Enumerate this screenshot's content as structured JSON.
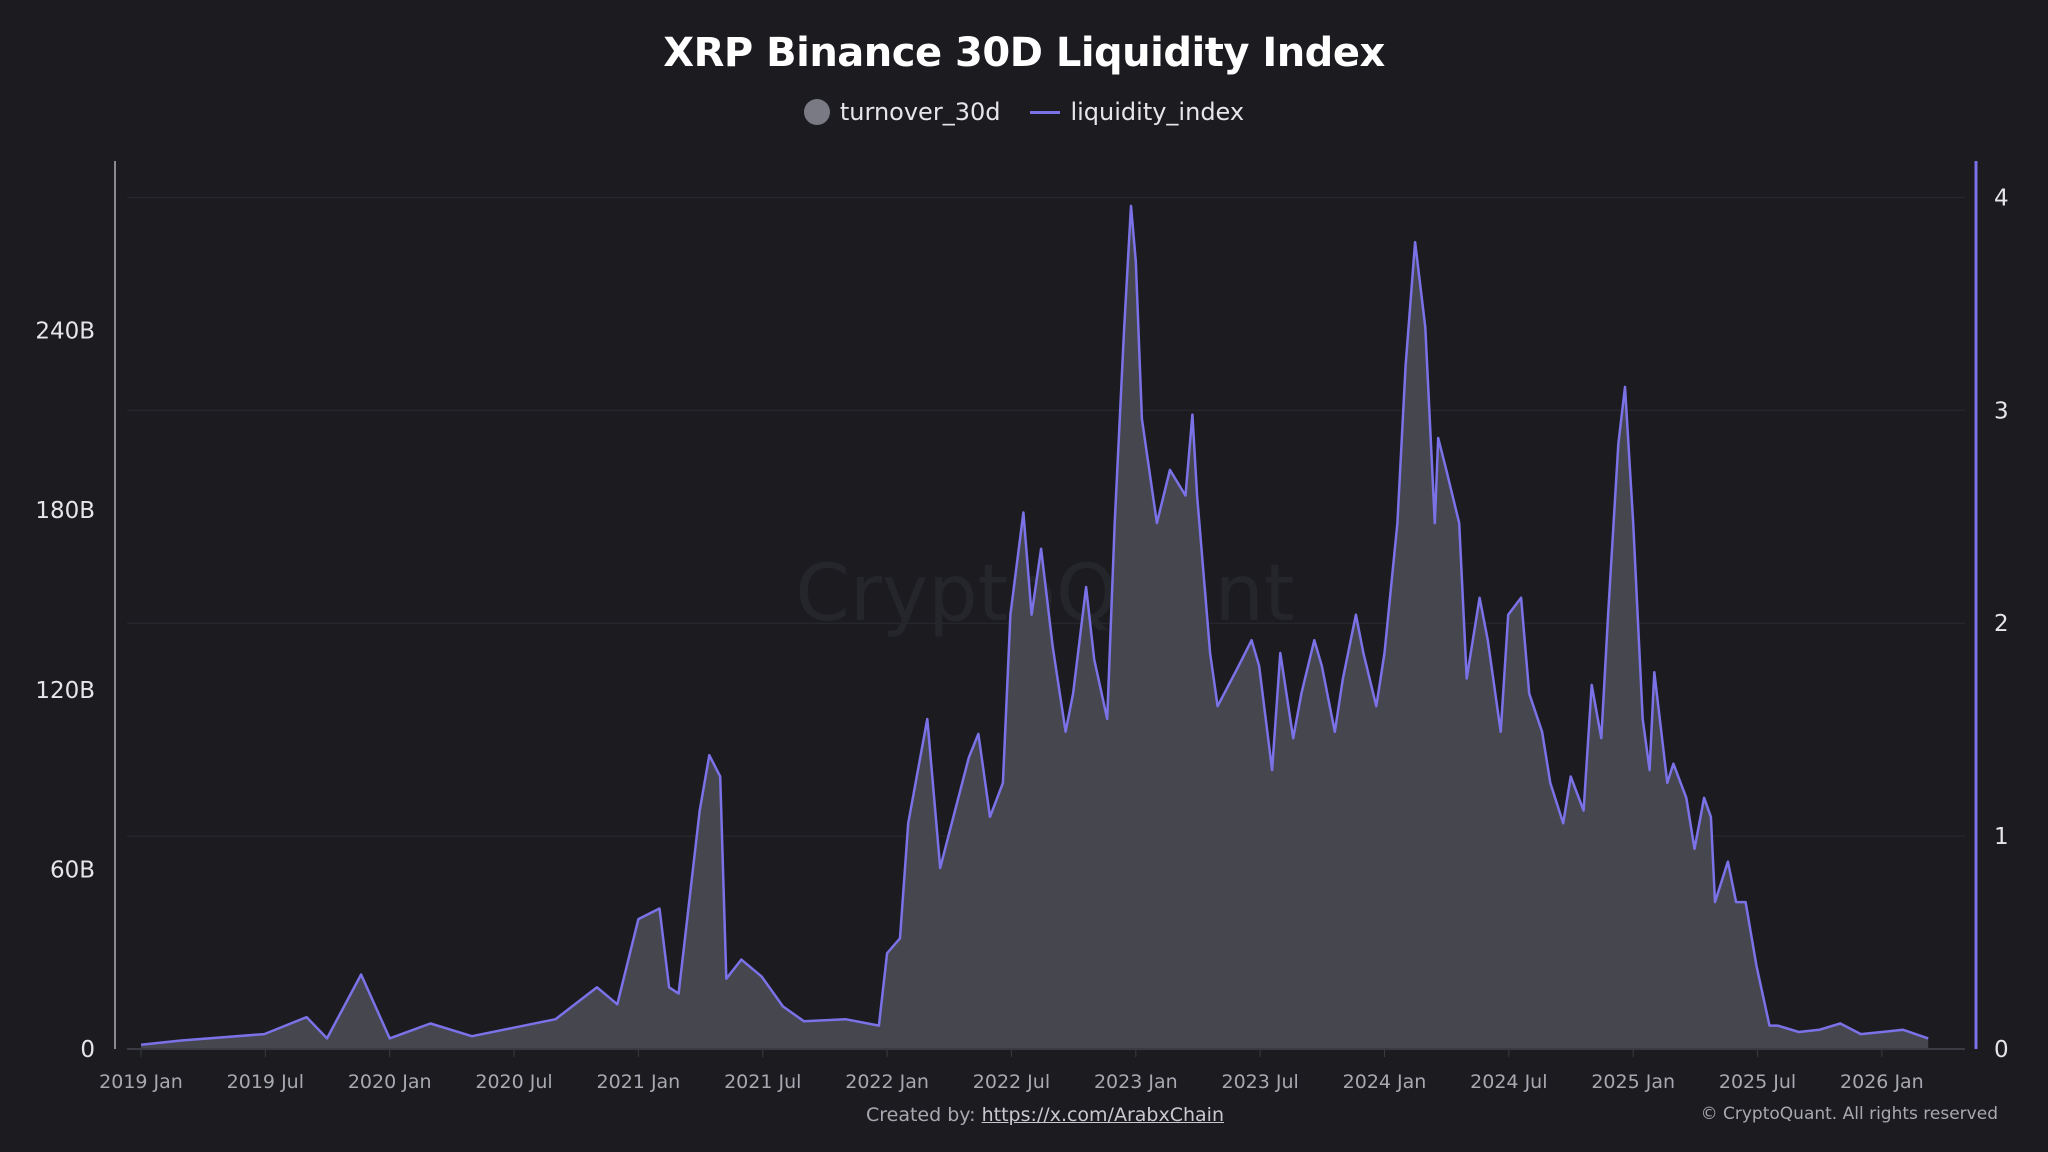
{
  "chart_data": {
    "type": "area",
    "title": "XRP Binance 30D Liquidity Index",
    "legend": {
      "placement": "top-center",
      "entries": [
        "turnover_30d",
        "liquidity_index"
      ]
    },
    "x_ticks": [
      "2019 Jan",
      "2019 Jul",
      "2020 Jan",
      "2020 Jul",
      "2021 Jan",
      "2021 Jul",
      "2022 Jan",
      "2022 Jul",
      "2023 Jan",
      "2023 Jul",
      "2024 Jan",
      "2024 Jul",
      "2025 Jan",
      "2025 Jul",
      "2026 Jan"
    ],
    "y_left": {
      "ticks": [
        "0",
        "60B",
        "120B",
        "180B",
        "240B"
      ],
      "range": [
        0,
        300
      ]
    },
    "y_right": {
      "ticks": [
        "0",
        "1",
        "2",
        "3",
        "4"
      ],
      "range": [
        0,
        4.2
      ]
    },
    "grid": true,
    "colors": {
      "turnover_30d": "#46464f",
      "liquidity_index": "#7b72e8",
      "background": "#1b1b20"
    },
    "x": [
      "2019-01-01",
      "2019-03-01",
      "2019-07-01",
      "2019-09-01",
      "2019-10-01",
      "2019-11-20",
      "2020-01-01",
      "2020-03-01",
      "2020-05-01",
      "2020-09-01",
      "2020-11-01",
      "2020-12-01",
      "2021-01-01",
      "2021-02-01",
      "2021-02-15",
      "2021-03-01",
      "2021-04-01",
      "2021-04-15",
      "2021-05-01",
      "2021-05-10",
      "2021-06-01",
      "2021-07-01",
      "2021-08-01",
      "2021-09-01",
      "2021-11-01",
      "2021-12-20",
      "2022-01-01",
      "2022-01-20",
      "2022-02-01",
      "2022-03-01",
      "2022-03-20",
      "2022-04-01",
      "2022-05-01",
      "2022-05-15",
      "2022-06-01",
      "2022-06-20",
      "2022-07-01",
      "2022-07-20",
      "2022-08-01",
      "2022-08-15",
      "2022-09-01",
      "2022-09-20",
      "2022-10-01",
      "2022-10-20",
      "2022-11-01",
      "2022-11-20",
      "2022-12-01",
      "2022-12-15",
      "2022-12-25",
      "2023-01-01",
      "2023-01-10",
      "2023-02-01",
      "2023-02-20",
      "2023-03-15",
      "2023-03-25",
      "2023-04-01",
      "2023-04-20",
      "2023-05-01",
      "2023-06-01",
      "2023-06-20",
      "2023-07-01",
      "2023-07-20",
      "2023-08-01",
      "2023-08-20",
      "2023-09-01",
      "2023-09-20",
      "2023-10-01",
      "2023-10-20",
      "2023-11-01",
      "2023-11-20",
      "2023-12-01",
      "2023-12-20",
      "2024-01-01",
      "2024-01-20",
      "2024-02-01",
      "2024-02-15",
      "2024-03-01",
      "2024-03-15",
      "2024-03-20",
      "2024-04-01",
      "2024-04-20",
      "2024-05-01",
      "2024-05-20",
      "2024-06-01",
      "2024-06-20",
      "2024-07-01",
      "2024-07-20",
      "2024-08-01",
      "2024-08-20",
      "2024-09-01",
      "2024-09-20",
      "2024-10-01",
      "2024-10-20",
      "2024-11-01",
      "2024-11-15",
      "2024-11-25",
      "2024-12-10",
      "2024-12-20",
      "2025-01-01",
      "2025-01-15",
      "2025-01-25",
      "2025-02-01",
      "2025-02-20",
      "2025-03-01",
      "2025-03-20",
      "2025-04-01",
      "2025-04-15",
      "2025-04-25",
      "2025-05-01",
      "2025-05-20",
      "2025-06-01",
      "2025-06-15",
      "2025-07-01",
      "2025-07-20",
      "2025-08-01",
      "2025-09-01",
      "2025-10-01",
      "2025-11-01",
      "2025-12-01",
      "2026-01-01",
      "2026-02-01",
      "2026-03-10"
    ],
    "series": [
      {
        "name": "turnover_30d",
        "axis": "left",
        "unit": "B",
        "values": [
          1,
          3,
          5,
          11,
          4,
          25,
          4,
          9,
          4,
          10,
          21,
          15,
          43,
          47,
          21,
          18,
          80,
          98,
          91,
          23,
          30,
          24,
          14,
          9,
          10,
          8,
          32,
          37,
          75,
          110,
          60,
          71,
          97,
          105,
          77,
          89,
          145,
          179,
          145,
          167,
          134,
          106,
          119,
          154,
          130,
          110,
          176,
          241,
          282,
          263,
          210,
          176,
          193,
          185,
          212,
          185,
          132,
          114,
          128,
          137,
          128,
          93,
          132,
          104,
          119,
          137,
          128,
          106,
          124,
          145,
          132,
          114,
          132,
          176,
          228,
          269,
          241,
          176,
          204,
          193,
          176,
          124,
          151,
          137,
          106,
          145,
          151,
          119,
          106,
          89,
          75,
          91,
          80,
          122,
          104,
          145,
          202,
          221,
          176,
          110,
          93,
          126,
          89,
          95,
          84,
          67,
          84,
          77,
          49,
          63,
          49,
          49,
          28,
          8,
          8,
          6,
          6,
          9,
          5,
          6,
          6,
          4
        ]
      },
      {
        "name": "liquidity_index",
        "axis": "right",
        "values": [
          0.02,
          0.04,
          0.07,
          0.15,
          0.05,
          0.35,
          0.05,
          0.12,
          0.06,
          0.14,
          0.29,
          0.21,
          0.61,
          0.66,
          0.29,
          0.26,
          1.12,
          1.38,
          1.28,
          0.33,
          0.42,
          0.34,
          0.2,
          0.13,
          0.14,
          0.11,
          0.45,
          0.52,
          1.06,
          1.55,
          0.85,
          1.0,
          1.37,
          1.48,
          1.09,
          1.25,
          2.04,
          2.52,
          2.04,
          2.35,
          1.89,
          1.49,
          1.67,
          2.17,
          1.83,
          1.55,
          2.47,
          3.39,
          3.96,
          3.7,
          2.96,
          2.47,
          2.72,
          2.6,
          2.98,
          2.6,
          1.86,
          1.61,
          1.8,
          1.92,
          1.8,
          1.31,
          1.86,
          1.46,
          1.67,
          1.92,
          1.8,
          1.49,
          1.74,
          2.04,
          1.86,
          1.61,
          1.86,
          2.47,
          3.21,
          3.79,
          3.39,
          2.47,
          2.87,
          2.72,
          2.47,
          1.74,
          2.12,
          1.92,
          1.49,
          2.04,
          2.12,
          1.67,
          1.49,
          1.25,
          1.06,
          1.28,
          1.12,
          1.71,
          1.46,
          2.04,
          2.84,
          3.11,
          2.47,
          1.55,
          1.31,
          1.77,
          1.25,
          1.34,
          1.18,
          0.94,
          1.18,
          1.09,
          0.69,
          0.88,
          0.69,
          0.69,
          0.39,
          0.11,
          0.11,
          0.08,
          0.09,
          0.12,
          0.07,
          0.08,
          0.09,
          0.05
        ]
      }
    ]
  },
  "watermark": "CryptoQuant",
  "footer": {
    "created_by_label": "Created by:",
    "created_by_link": "https://x.com/ArabxChain",
    "copyright": "© CryptoQuant. All rights reserved"
  }
}
